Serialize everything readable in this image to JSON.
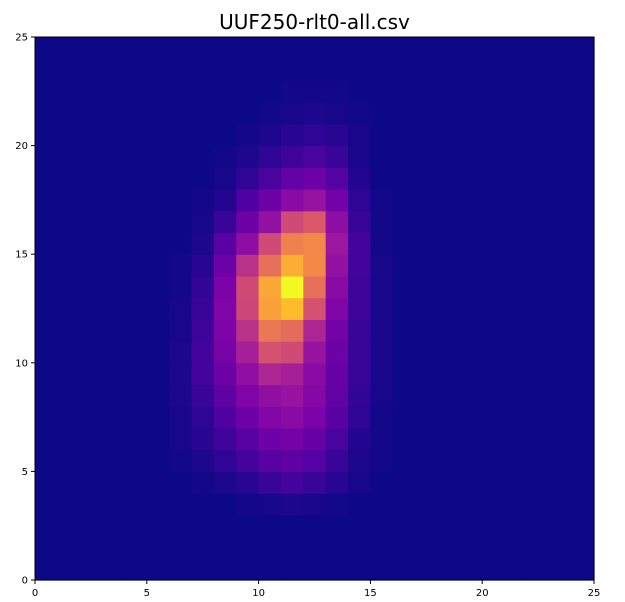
{
  "chart_data": {
    "type": "heatmap",
    "title": "UUF250-rlt0-all.csv",
    "xlabel": "",
    "ylabel": "",
    "xlim": [
      0,
      25
    ],
    "ylim": [
      0,
      25
    ],
    "x_ticks": [
      0,
      5,
      10,
      15,
      20,
      25
    ],
    "y_ticks": [
      0,
      5,
      10,
      15,
      20,
      25
    ],
    "colormap": "plasma",
    "value_range": [
      0,
      1
    ],
    "grid": false,
    "cell_size": 1,
    "values": [
      [
        0,
        0,
        0,
        0,
        0,
        0,
        0,
        0,
        0,
        0,
        0,
        0,
        0,
        0,
        0,
        0,
        0,
        0,
        0,
        0,
        0,
        0,
        0,
        0,
        0
      ],
      [
        0,
        0,
        0,
        0,
        0,
        0,
        0,
        0,
        0,
        0,
        0,
        0,
        0,
        0,
        0,
        0,
        0,
        0,
        0,
        0,
        0,
        0,
        0,
        0,
        0
      ],
      [
        0,
        0,
        0,
        0,
        0,
        0,
        0,
        0,
        0,
        0,
        0,
        0,
        0,
        0,
        0,
        0,
        0,
        0,
        0,
        0,
        0,
        0,
        0,
        0,
        0
      ],
      [
        0,
        0,
        0,
        0,
        0,
        0,
        0,
        0,
        0,
        0.01,
        0.02,
        0.03,
        0.02,
        0.01,
        0,
        0,
        0,
        0,
        0,
        0,
        0,
        0,
        0,
        0,
        0
      ],
      [
        0,
        0,
        0,
        0,
        0,
        0,
        0,
        0.01,
        0.03,
        0.05,
        0.08,
        0.1,
        0.08,
        0.05,
        0.02,
        0,
        0,
        0,
        0,
        0,
        0,
        0,
        0,
        0,
        0
      ],
      [
        0,
        0,
        0,
        0,
        0,
        0,
        0.01,
        0.03,
        0.06,
        0.1,
        0.14,
        0.16,
        0.13,
        0.08,
        0.03,
        0.01,
        0,
        0,
        0,
        0,
        0,
        0,
        0,
        0,
        0
      ],
      [
        0,
        0,
        0,
        0,
        0,
        0,
        0.02,
        0.05,
        0.09,
        0.14,
        0.2,
        0.22,
        0.18,
        0.11,
        0.04,
        0.01,
        0,
        0,
        0,
        0,
        0,
        0,
        0,
        0,
        0
      ],
      [
        0,
        0,
        0,
        0,
        0,
        0,
        0.02,
        0.06,
        0.12,
        0.2,
        0.27,
        0.3,
        0.24,
        0.14,
        0.06,
        0.01,
        0,
        0,
        0,
        0,
        0,
        0,
        0,
        0,
        0
      ],
      [
        0,
        0,
        0,
        0,
        0,
        0,
        0.03,
        0.08,
        0.16,
        0.26,
        0.33,
        0.36,
        0.28,
        0.17,
        0.07,
        0.02,
        0,
        0,
        0,
        0,
        0,
        0,
        0,
        0,
        0
      ],
      [
        0,
        0,
        0,
        0,
        0,
        0,
        0.03,
        0.1,
        0.2,
        0.33,
        0.42,
        0.4,
        0.3,
        0.18,
        0.08,
        0.02,
        0,
        0,
        0,
        0,
        0,
        0,
        0,
        0,
        0
      ],
      [
        0,
        0,
        0,
        0,
        0,
        0,
        0.03,
        0.1,
        0.23,
        0.4,
        0.55,
        0.52,
        0.36,
        0.2,
        0.08,
        0.02,
        0,
        0,
        0,
        0,
        0,
        0,
        0,
        0,
        0
      ],
      [
        0,
        0,
        0,
        0,
        0,
        0,
        0.02,
        0.09,
        0.25,
        0.45,
        0.68,
        0.65,
        0.42,
        0.22,
        0.08,
        0.02,
        0,
        0,
        0,
        0,
        0,
        0,
        0,
        0,
        0
      ],
      [
        0,
        0,
        0,
        0,
        0,
        0,
        0.02,
        0.08,
        0.26,
        0.5,
        0.78,
        0.86,
        0.55,
        0.26,
        0.09,
        0.02,
        0,
        0,
        0,
        0,
        0,
        0,
        0,
        0,
        0
      ],
      [
        0,
        0,
        0,
        0,
        0,
        0,
        0.01,
        0.07,
        0.24,
        0.52,
        0.8,
        1.0,
        0.66,
        0.3,
        0.09,
        0.02,
        0,
        0,
        0,
        0,
        0,
        0,
        0,
        0,
        0
      ],
      [
        0,
        0,
        0,
        0,
        0,
        0,
        0.01,
        0.05,
        0.2,
        0.45,
        0.66,
        0.82,
        0.72,
        0.34,
        0.1,
        0.02,
        0,
        0,
        0,
        0,
        0,
        0,
        0,
        0,
        0
      ],
      [
        0,
        0,
        0,
        0,
        0,
        0,
        0,
        0.03,
        0.14,
        0.32,
        0.52,
        0.7,
        0.72,
        0.38,
        0.1,
        0.01,
        0,
        0,
        0,
        0,
        0,
        0,
        0,
        0,
        0
      ],
      [
        0,
        0,
        0,
        0,
        0,
        0,
        0,
        0.02,
        0.08,
        0.2,
        0.34,
        0.52,
        0.58,
        0.32,
        0.08,
        0.01,
        0,
        0,
        0,
        0,
        0,
        0,
        0,
        0,
        0
      ],
      [
        0,
        0,
        0,
        0,
        0,
        0,
        0,
        0.01,
        0.04,
        0.12,
        0.2,
        0.3,
        0.36,
        0.22,
        0.06,
        0.01,
        0,
        0,
        0,
        0,
        0,
        0,
        0,
        0,
        0
      ],
      [
        0,
        0,
        0,
        0,
        0,
        0,
        0,
        0,
        0.02,
        0.06,
        0.11,
        0.17,
        0.2,
        0.13,
        0.04,
        0,
        0,
        0,
        0,
        0,
        0,
        0,
        0,
        0,
        0
      ],
      [
        0,
        0,
        0,
        0,
        0,
        0,
        0,
        0,
        0.01,
        0.03,
        0.06,
        0.09,
        0.11,
        0.08,
        0.02,
        0,
        0,
        0,
        0,
        0,
        0,
        0,
        0,
        0,
        0
      ],
      [
        0,
        0,
        0,
        0,
        0,
        0,
        0,
        0,
        0,
        0.01,
        0.03,
        0.05,
        0.06,
        0.05,
        0.02,
        0,
        0,
        0,
        0,
        0,
        0,
        0,
        0,
        0,
        0
      ],
      [
        0,
        0,
        0,
        0,
        0,
        0,
        0,
        0,
        0,
        0,
        0.01,
        0.02,
        0.03,
        0.02,
        0.01,
        0,
        0,
        0,
        0,
        0,
        0,
        0,
        0,
        0,
        0
      ],
      [
        0,
        0,
        0,
        0,
        0,
        0,
        0,
        0,
        0,
        0,
        0,
        0.01,
        0.01,
        0.01,
        0,
        0,
        0,
        0,
        0,
        0,
        0,
        0,
        0,
        0,
        0
      ],
      [
        0,
        0,
        0,
        0,
        0,
        0,
        0,
        0,
        0,
        0,
        0,
        0,
        0,
        0,
        0,
        0,
        0,
        0,
        0,
        0,
        0,
        0,
        0,
        0,
        0
      ],
      [
        0,
        0,
        0,
        0,
        0,
        0,
        0,
        0,
        0,
        0,
        0,
        0,
        0,
        0,
        0,
        0,
        0,
        0,
        0,
        0,
        0,
        0,
        0,
        0,
        0
      ]
    ]
  }
}
